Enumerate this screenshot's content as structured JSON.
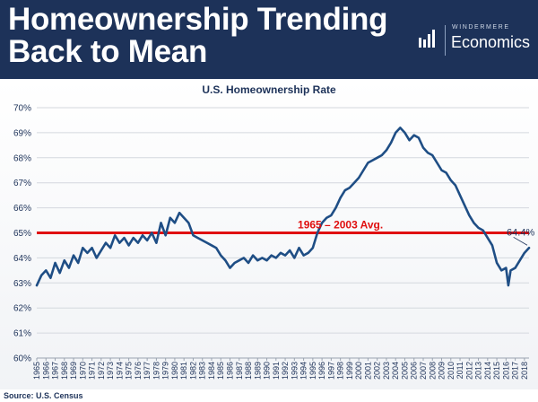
{
  "header": {
    "title_line1": "Homeownership Trending",
    "title_line2": "Back to Mean",
    "logo_top": "WINDERMERE",
    "logo_main": "Economics"
  },
  "source": "Source: U.S. Census",
  "colors": {
    "header_bg": "#1d3259",
    "series_line": "#1f4e85",
    "avg_line": "#e01010",
    "text_dark": "#1d3259"
  },
  "chart_data": {
    "type": "line",
    "title": "U.S. Homeownership Rate",
    "xlabel": "",
    "ylabel": "",
    "xlim": [
      1965,
      2018.5
    ],
    "ylim": [
      60,
      70
    ],
    "grid": true,
    "y_ticks": [
      "60%",
      "61%",
      "62%",
      "63%",
      "64%",
      "65%",
      "66%",
      "67%",
      "68%",
      "69%",
      "70%"
    ],
    "x_ticks": [
      "1965",
      "1966",
      "1967",
      "1968",
      "1969",
      "1970",
      "1971",
      "1972",
      "1973",
      "1974",
      "1975",
      "1976",
      "1977",
      "1978",
      "1979",
      "1980",
      "1981",
      "1982",
      "1983",
      "1984",
      "1985",
      "1986",
      "1987",
      "1988",
      "1989",
      "1990",
      "1991",
      "1992",
      "1993",
      "1994",
      "1995",
      "1996",
      "1997",
      "1998",
      "1999",
      "2000",
      "2001",
      "2002",
      "2003",
      "2004",
      "2005",
      "2006",
      "2007",
      "2008",
      "2009",
      "2010",
      "2011",
      "2012",
      "2013",
      "2014",
      "2015",
      "2016",
      "2017",
      "2018"
    ],
    "series": [
      {
        "values": [
          [
            1965.0,
            62.9
          ],
          [
            1965.5,
            63.3
          ],
          [
            1966.0,
            63.5
          ],
          [
            1966.5,
            63.2
          ],
          [
            1967.0,
            63.8
          ],
          [
            1967.5,
            63.4
          ],
          [
            1968.0,
            63.9
          ],
          [
            1968.5,
            63.6
          ],
          [
            1969.0,
            64.1
          ],
          [
            1969.5,
            63.8
          ],
          [
            1970.0,
            64.4
          ],
          [
            1970.5,
            64.2
          ],
          [
            1971.0,
            64.4
          ],
          [
            1971.5,
            64.0
          ],
          [
            1972.0,
            64.3
          ],
          [
            1972.5,
            64.6
          ],
          [
            1973.0,
            64.4
          ],
          [
            1973.5,
            64.9
          ],
          [
            1974.0,
            64.6
          ],
          [
            1974.5,
            64.8
          ],
          [
            1975.0,
            64.5
          ],
          [
            1975.5,
            64.8
          ],
          [
            1976.0,
            64.6
          ],
          [
            1976.5,
            64.9
          ],
          [
            1977.0,
            64.7
          ],
          [
            1977.5,
            65.0
          ],
          [
            1978.0,
            64.6
          ],
          [
            1978.5,
            65.4
          ],
          [
            1979.0,
            64.9
          ],
          [
            1979.5,
            65.6
          ],
          [
            1980.0,
            65.4
          ],
          [
            1980.5,
            65.8
          ],
          [
            1981.0,
            65.6
          ],
          [
            1981.5,
            65.4
          ],
          [
            1982.0,
            64.9
          ],
          [
            1982.5,
            64.8
          ],
          [
            1983.0,
            64.7
          ],
          [
            1983.5,
            64.6
          ],
          [
            1984.0,
            64.5
          ],
          [
            1984.5,
            64.4
          ],
          [
            1985.0,
            64.1
          ],
          [
            1985.5,
            63.9
          ],
          [
            1986.0,
            63.6
          ],
          [
            1986.5,
            63.8
          ],
          [
            1987.0,
            63.9
          ],
          [
            1987.5,
            64.0
          ],
          [
            1988.0,
            63.8
          ],
          [
            1988.5,
            64.1
          ],
          [
            1989.0,
            63.9
          ],
          [
            1989.5,
            64.0
          ],
          [
            1990.0,
            63.9
          ],
          [
            1990.5,
            64.1
          ],
          [
            1991.0,
            64.0
          ],
          [
            1991.5,
            64.2
          ],
          [
            1992.0,
            64.1
          ],
          [
            1992.5,
            64.3
          ],
          [
            1993.0,
            64.0
          ],
          [
            1993.5,
            64.4
          ],
          [
            1994.0,
            64.1
          ],
          [
            1994.5,
            64.2
          ],
          [
            1995.0,
            64.4
          ],
          [
            1995.5,
            65.0
          ],
          [
            1996.0,
            65.4
          ],
          [
            1996.5,
            65.6
          ],
          [
            1997.0,
            65.7
          ],
          [
            1997.5,
            66.0
          ],
          [
            1998.0,
            66.4
          ],
          [
            1998.5,
            66.7
          ],
          [
            1999.0,
            66.8
          ],
          [
            1999.5,
            67.0
          ],
          [
            2000.0,
            67.2
          ],
          [
            2000.5,
            67.5
          ],
          [
            2001.0,
            67.8
          ],
          [
            2001.5,
            67.9
          ],
          [
            2002.0,
            68.0
          ],
          [
            2002.5,
            68.1
          ],
          [
            2003.0,
            68.3
          ],
          [
            2003.5,
            68.6
          ],
          [
            2004.0,
            69.0
          ],
          [
            2004.5,
            69.2
          ],
          [
            2005.0,
            69.0
          ],
          [
            2005.5,
            68.7
          ],
          [
            2006.0,
            68.9
          ],
          [
            2006.5,
            68.8
          ],
          [
            2007.0,
            68.4
          ],
          [
            2007.5,
            68.2
          ],
          [
            2008.0,
            68.1
          ],
          [
            2008.5,
            67.8
          ],
          [
            2009.0,
            67.5
          ],
          [
            2009.5,
            67.4
          ],
          [
            2010.0,
            67.1
          ],
          [
            2010.5,
            66.9
          ],
          [
            2011.0,
            66.5
          ],
          [
            2011.5,
            66.1
          ],
          [
            2012.0,
            65.7
          ],
          [
            2012.5,
            65.4
          ],
          [
            2013.0,
            65.2
          ],
          [
            2013.5,
            65.1
          ],
          [
            2014.0,
            64.8
          ],
          [
            2014.5,
            64.5
          ],
          [
            2015.0,
            63.8
          ],
          [
            2015.5,
            63.5
          ],
          [
            2016.0,
            63.6
          ],
          [
            2016.25,
            62.9
          ],
          [
            2016.5,
            63.5
          ],
          [
            2017.0,
            63.6
          ],
          [
            2017.5,
            63.9
          ],
          [
            2018.0,
            64.2
          ],
          [
            2018.5,
            64.4
          ]
        ]
      }
    ],
    "annotations": [
      {
        "text": "1965 – 2003 Avg.",
        "y": 65.0,
        "x": 1998.0
      },
      {
        "text": "64.4%",
        "x": 2017.2,
        "y": 64.9
      }
    ],
    "reference_lines": [
      {
        "y": 65.0,
        "label": "1965 – 2003 Avg."
      }
    ]
  }
}
